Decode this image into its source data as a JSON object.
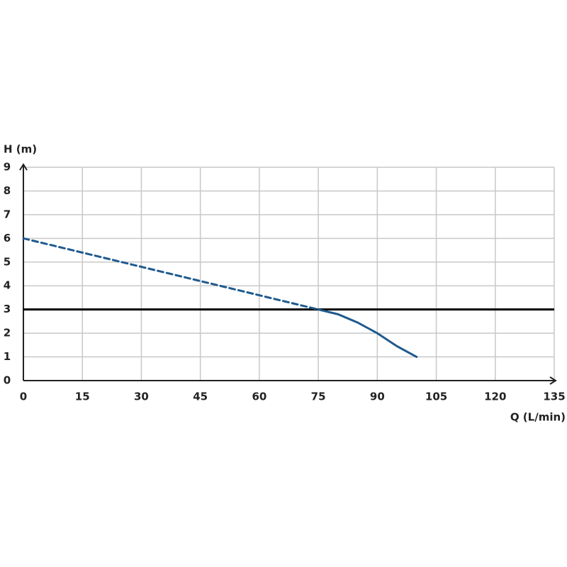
{
  "chart_data": {
    "type": "line",
    "ylabel": "H (m)",
    "xlabel": "Q (L/min)",
    "xlim": [
      0,
      135
    ],
    "xticks": [
      0,
      15,
      30,
      45,
      60,
      75,
      90,
      105,
      120,
      135
    ],
    "ylim": [
      0,
      9
    ],
    "yticks": [
      0,
      1,
      2,
      3,
      4,
      5,
      6,
      7,
      8,
      9
    ],
    "grid": true,
    "hline": 3,
    "series": [
      {
        "color": "#1f5a8e",
        "dashed": true,
        "x": [
          0,
          75
        ],
        "values": [
          6,
          3
        ]
      },
      {
        "color": "#1f5a8e",
        "dashed": false,
        "x": [
          75,
          80,
          85,
          90,
          95,
          100
        ],
        "values": [
          3,
          2.8,
          2.45,
          2.0,
          1.45,
          1.0
        ]
      }
    ]
  }
}
